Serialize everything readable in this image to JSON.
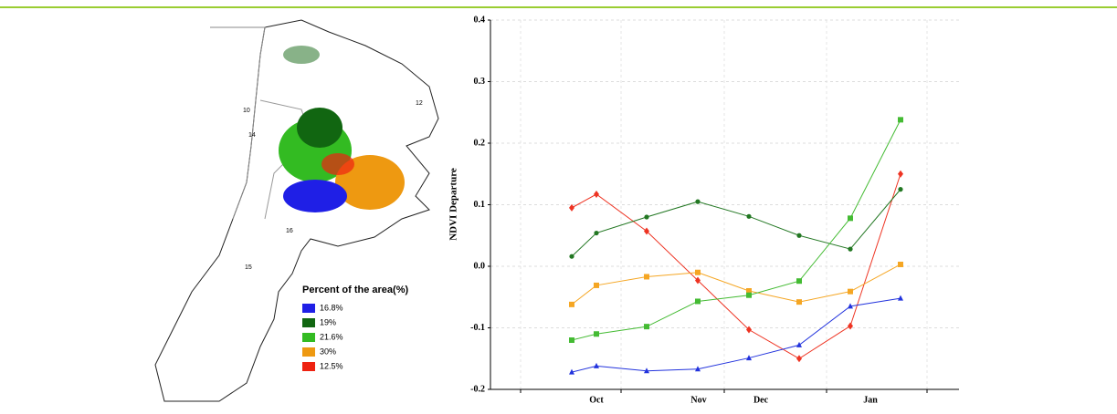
{
  "map": {
    "region_labels": [
      "10",
      "14",
      "16",
      "15",
      "12"
    ],
    "legend": {
      "title": "Percent of the area(%)",
      "items": [
        {
          "label": "16.8%",
          "color": "#1f1fe6"
        },
        {
          "label": "19%",
          "color": "#116611"
        },
        {
          "label": "21.6%",
          "color": "#33bb22"
        },
        {
          "label": "30%",
          "color": "#ee9911"
        },
        {
          "label": "12.5%",
          "color": "#ee2211"
        }
      ]
    }
  },
  "chart_data": {
    "type": "line",
    "y_label": "NDVI Departure",
    "month_labels": [
      "Oct",
      "Nov",
      "Dec",
      "Jan"
    ],
    "ylim": [
      -0.2,
      0.4
    ],
    "yticks": [
      0.4,
      0.3,
      0.2,
      0.1,
      {
        "value": 0,
        "label": "0.0"
      },
      -0.1,
      -0.2
    ],
    "grid": true,
    "series": [
      {
        "color": "#ee3322",
        "marker": "diamond",
        "values": [
          0.095,
          0.117,
          0.057,
          -0.023,
          -0.103,
          -0.15,
          -0.097,
          0.15
        ]
      },
      {
        "color": "#227722",
        "marker": "circle",
        "values": [
          0.016,
          0.054,
          0.08,
          0.105,
          0.081,
          0.05,
          0.028,
          0.125
        ]
      },
      {
        "color": "#f5a623",
        "marker": "square",
        "values": [
          -0.062,
          -0.031,
          -0.017,
          -0.01,
          -0.04,
          -0.058,
          -0.041,
          0.003
        ]
      },
      {
        "color": "#44bb33",
        "marker": "square",
        "values": [
          -0.12,
          -0.11,
          -0.098,
          -0.057,
          -0.047,
          -0.024,
          0.078,
          0.238
        ]
      },
      {
        "color": "#2233dd",
        "marker": "triangle",
        "values": [
          -0.172,
          -0.162,
          -0.17,
          -0.167,
          -0.149,
          -0.128,
          -0.065,
          -0.052
        ]
      }
    ]
  }
}
